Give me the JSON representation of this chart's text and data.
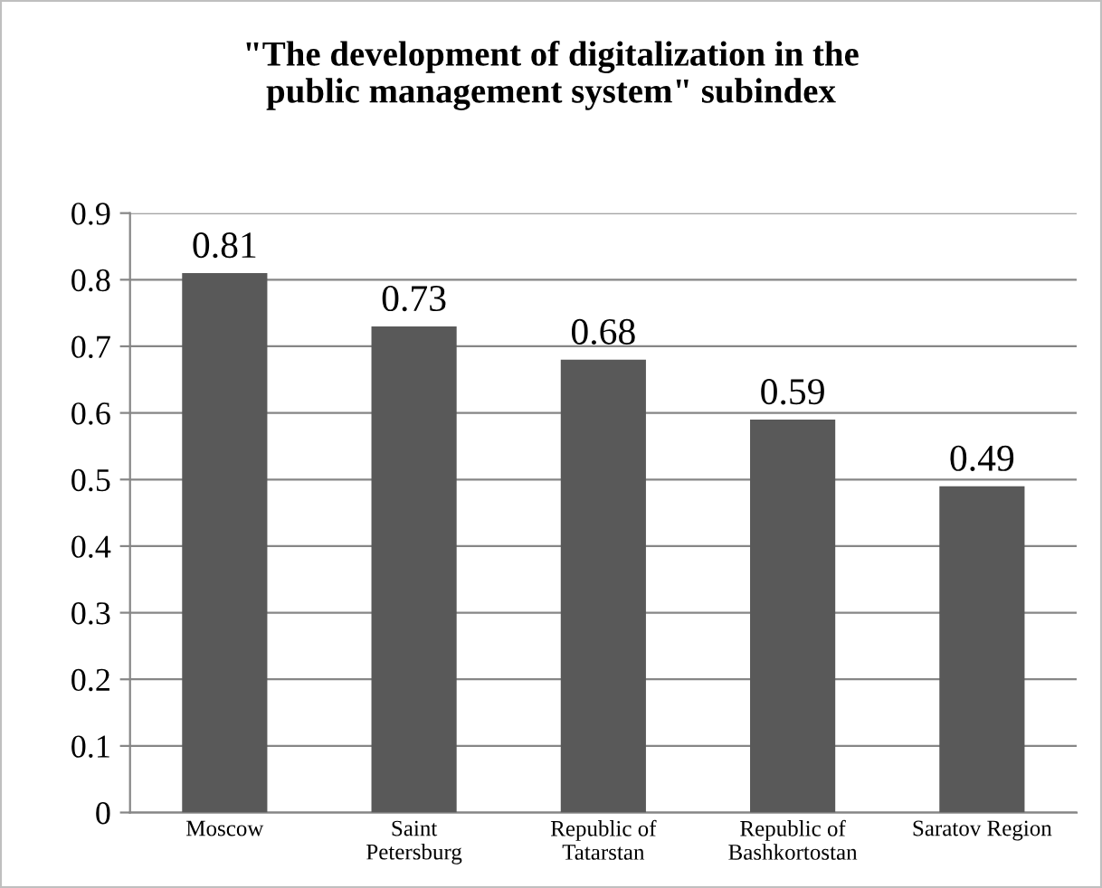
{
  "chart_data": {
    "type": "bar",
    "title": "\"The development of digitalization in the\npublic management system\" subindex",
    "categories": [
      "Moscow",
      "Saint\nPetersburg",
      "Republic of\nTatarstan",
      "Republic of\nBashkortostan",
      "Saratov Region"
    ],
    "values": [
      0.81,
      0.73,
      0.68,
      0.59,
      0.49
    ],
    "color": "#595959",
    "ylim": [
      0,
      0.9
    ],
    "yticks": [
      0,
      0.1,
      0.2,
      0.3,
      0.4,
      0.5,
      0.6,
      0.7,
      0.8,
      0.9
    ],
    "grid": "y",
    "data_labels": true,
    "legend": false
  }
}
